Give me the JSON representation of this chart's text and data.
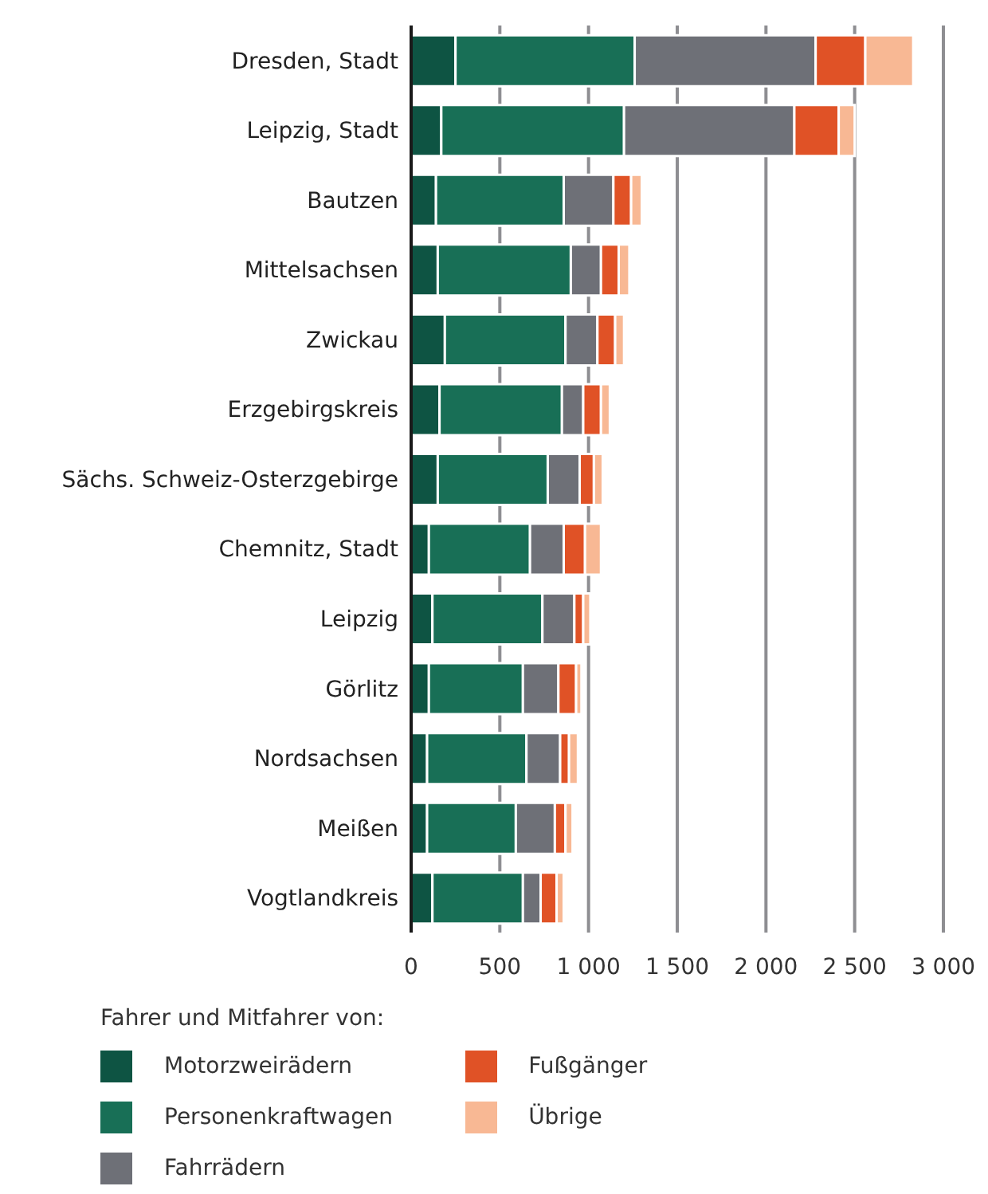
{
  "chart_data": {
    "type": "bar",
    "orientation": "horizontal",
    "stacked": true,
    "categories": [
      "Dresden, Stadt",
      "Leipzig, Stadt",
      "Bautzen",
      "Mittelsachsen",
      "Zwickau",
      "Erzgebirgskreis",
      "Sächs. Schweiz-Osterzgebirge",
      "Chemnitz, Stadt",
      "Leipzig",
      "Görlitz",
      "Nordsachsen",
      "Meißen",
      "Vogtlandkreis"
    ],
    "series": [
      {
        "name": "Motorzweirädern",
        "color": "#0e5443",
        "values": [
          250,
          170,
          140,
          150,
          190,
          160,
          150,
          100,
          120,
          100,
          90,
          90,
          120
        ]
      },
      {
        "name": "Personenkraftwagen",
        "color": "#186f56",
        "values": [
          1010,
          1030,
          720,
          750,
          680,
          690,
          620,
          570,
          620,
          530,
          560,
          500,
          510
        ]
      },
      {
        "name": "Fahrrädern",
        "color": "#6e7077",
        "values": [
          1020,
          960,
          280,
          170,
          180,
          120,
          180,
          190,
          180,
          200,
          190,
          220,
          100
        ]
      },
      {
        "name": "Fußgänger",
        "color": "#e05226",
        "values": [
          280,
          250,
          100,
          100,
          100,
          100,
          80,
          120,
          50,
          100,
          50,
          60,
          90
        ]
      },
      {
        "name": "Übrige",
        "color": "#f8b894",
        "values": [
          270,
          90,
          60,
          60,
          50,
          50,
          50,
          90,
          40,
          30,
          50,
          40,
          40
        ]
      }
    ],
    "xlim": [
      0,
      3000
    ],
    "xticks": [
      0,
      {
        "value": 500,
        "label": "500"
      },
      {
        "value": 1000,
        "label": "1 000"
      },
      {
        "value": 1500,
        "label": "1 500"
      },
      {
        "value": 2000,
        "label": "2 000"
      },
      {
        "value": 2500,
        "label": "2 500"
      },
      {
        "value": 3000,
        "label": "3 000"
      }
    ],
    "grid": "x",
    "legend": "bottom",
    "legend_title": "Fahrer und Mitfahrer von:"
  }
}
